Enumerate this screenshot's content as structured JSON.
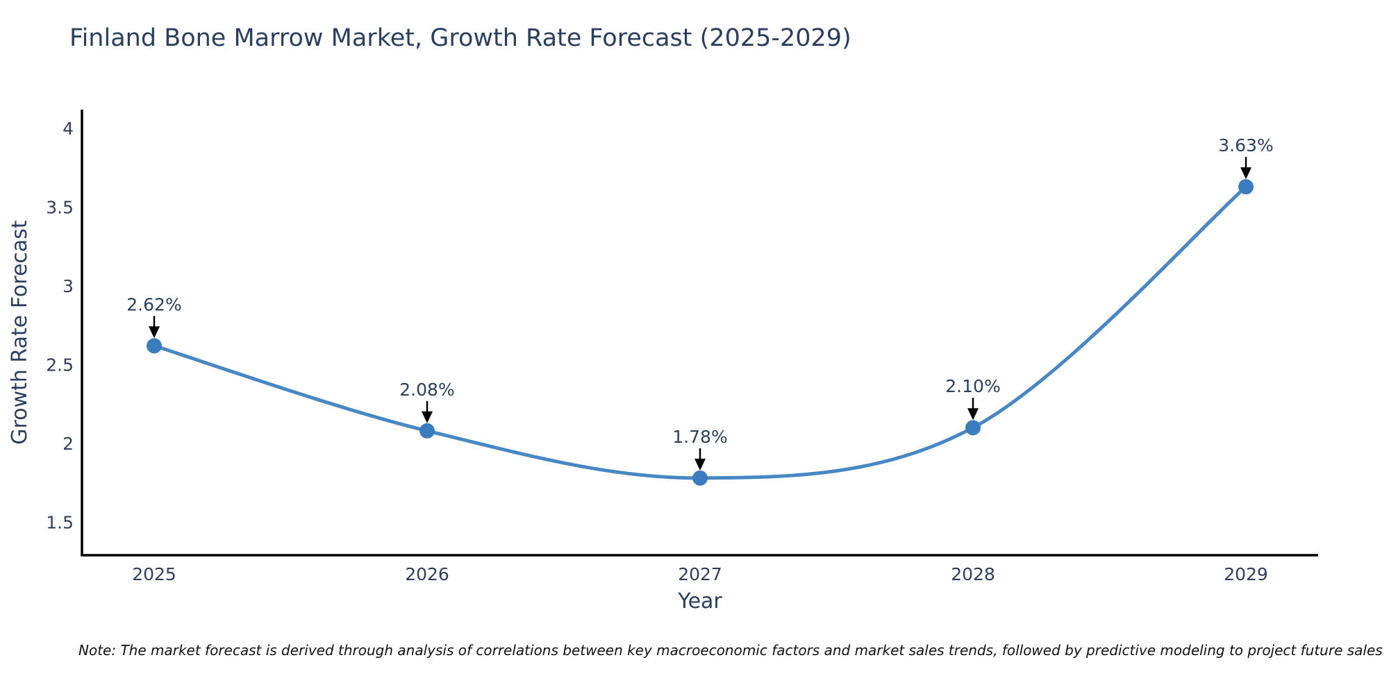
{
  "chart_data": {
    "type": "line",
    "title": "Finland Bone Marrow Market, Growth Rate Forecast (2025-2029)",
    "xlabel": "Year",
    "ylabel": "Growth Rate Forecast",
    "categories": [
      "2025",
      "2026",
      "2027",
      "2028",
      "2029"
    ],
    "values": [
      2.62,
      2.08,
      1.78,
      2.1,
      3.63
    ],
    "point_labels": [
      "2.62%",
      "2.08%",
      "1.78%",
      "2.10%",
      "3.63%"
    ],
    "yticks": [
      "1.5",
      "2",
      "2.5",
      "3",
      "3.5",
      "4"
    ],
    "ylim": [
      1.29,
      4.12
    ],
    "line_shape": "spline",
    "grid": false,
    "legend_position": "none",
    "annotation_style": "arrow-down-to-point",
    "colors": {
      "line": "#4787c3",
      "marker": "#3b7cbf",
      "axis": "#000000",
      "text": "#2a3f5f",
      "annotation_arrow": "#000000",
      "background": "#ffffff"
    }
  },
  "note": "Note: The market forecast is derived through analysis of correlations between key macroeconomic factors and market sales trends, followed by predictive modeling to project future sales"
}
